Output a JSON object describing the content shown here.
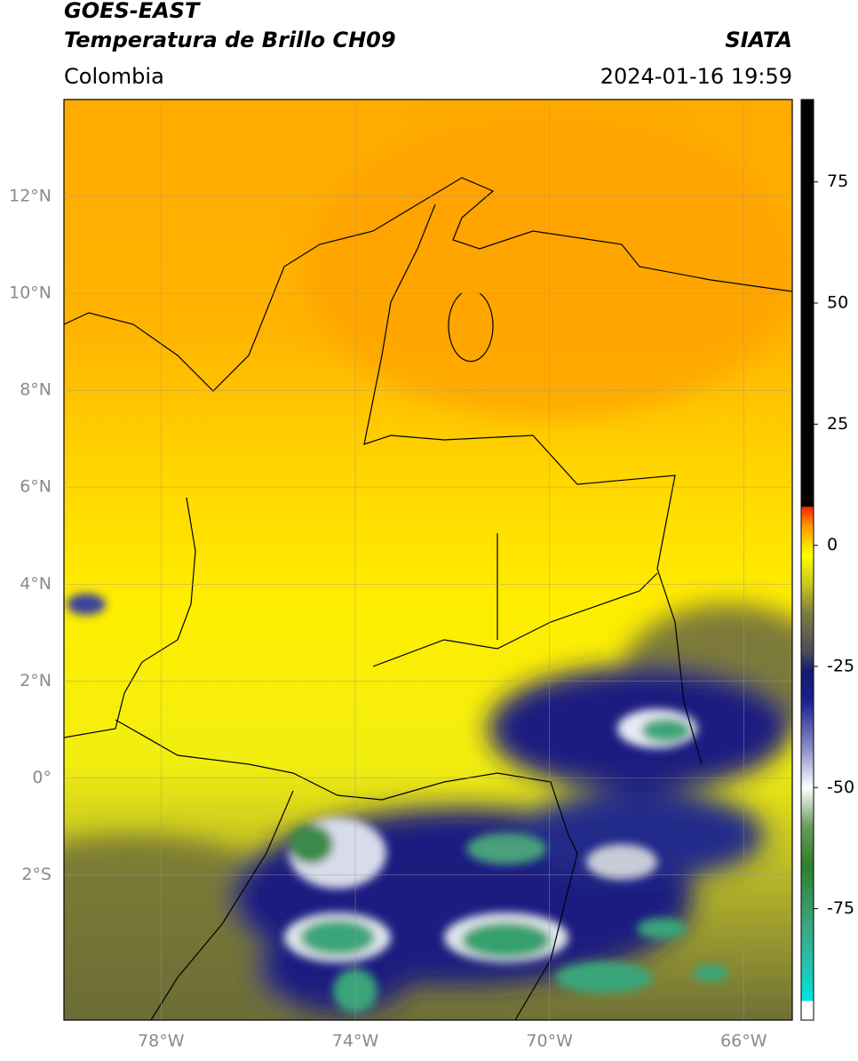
{
  "header": {
    "title": "GOES-EAST",
    "subtitle": "Temperatura de Brillo CH09",
    "source": "SIATA",
    "region": "Colombia",
    "timestamp": "2024-01-16 19:59"
  },
  "map": {
    "xlim": [
      -80,
      -65
    ],
    "ylim": [
      -5,
      14
    ],
    "xticks": [
      {
        "value": -78,
        "label": "78°W"
      },
      {
        "value": -74,
        "label": "74°W"
      },
      {
        "value": -70,
        "label": "70°W"
      },
      {
        "value": -66,
        "label": "66°W"
      }
    ],
    "yticks": [
      {
        "value": 12,
        "label": "12°N"
      },
      {
        "value": 10,
        "label": "10°N"
      },
      {
        "value": 8,
        "label": "8°N"
      },
      {
        "value": 6,
        "label": "6°N"
      },
      {
        "value": 4,
        "label": "4°N"
      },
      {
        "value": 2,
        "label": "2°N"
      },
      {
        "value": 0,
        "label": "0°"
      },
      {
        "value": -2,
        "label": "2°S"
      }
    ],
    "grid": true
  },
  "colorbar": {
    "lim": [
      -98,
      92
    ],
    "ticks": [
      75,
      50,
      25,
      0,
      -25,
      -50,
      -75
    ],
    "stops": [
      [
        -98,
        "#ffffff"
      ],
      [
        -94,
        "#ffffff"
      ],
      [
        -94,
        "#00e5e5"
      ],
      [
        -88,
        "#1fc8b4"
      ],
      [
        -78,
        "#3aa57a"
      ],
      [
        -66,
        "#2f7f2a"
      ],
      [
        -58,
        "#6a9a5a"
      ],
      [
        -50,
        "#ffffff"
      ],
      [
        -42,
        "#8a90c8"
      ],
      [
        -32,
        "#1c1f8c"
      ],
      [
        -26,
        "#141a6e"
      ],
      [
        -22,
        "#4a4a5a"
      ],
      [
        -14,
        "#7d7d40"
      ],
      [
        -8,
        "#c8c820"
      ],
      [
        -2,
        "#ffff00"
      ],
      [
        4,
        "#ff9900"
      ],
      [
        8,
        "#ff2200"
      ],
      [
        8,
        "#000000"
      ],
      [
        92,
        "#000000"
      ]
    ]
  }
}
